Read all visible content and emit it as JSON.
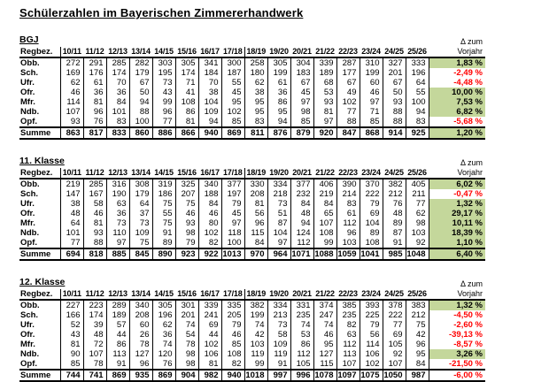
{
  "page_title": "Schülerzahlen im Bayerischen Zimmererhandwerk",
  "label_header": "Regbez.",
  "delta_header": {
    "line1": "Δ zum",
    "line2": "Vorjahr"
  },
  "years": [
    "10/11",
    "11/12",
    "12/13",
    "13/14",
    "14/15",
    "15/16",
    "16/17",
    "17/18",
    "18/19",
    "19/20",
    "20/21",
    "21/22",
    "22/23",
    "23/24",
    "24/25",
    "25/26"
  ],
  "colors": {
    "positive_bg": "#c4d79b",
    "negative_text": "#ff0000",
    "grid": "#000000"
  },
  "tables": [
    {
      "name": "BGJ",
      "rows": [
        {
          "label": "Obb.",
          "values": [
            272,
            291,
            285,
            282,
            303,
            305,
            341,
            300,
            258,
            305,
            304,
            339,
            287,
            310,
            327,
            333
          ],
          "delta": "1,83 %",
          "positive": true
        },
        {
          "label": "Sch.",
          "values": [
            169,
            176,
            174,
            179,
            195,
            174,
            184,
            187,
            180,
            199,
            183,
            189,
            177,
            199,
            201,
            196
          ],
          "delta": "-2,49 %",
          "positive": false
        },
        {
          "label": "Ufr.",
          "values": [
            62,
            61,
            70,
            67,
            73,
            71,
            70,
            55,
            62,
            61,
            67,
            68,
            67,
            60,
            67,
            64
          ],
          "delta": "-4,48 %",
          "positive": false
        },
        {
          "label": "Ofr.",
          "values": [
            46,
            36,
            36,
            50,
            43,
            41,
            38,
            45,
            38,
            36,
            45,
            53,
            49,
            46,
            50,
            55
          ],
          "delta": "10,00 %",
          "positive": true
        },
        {
          "label": "Mfr.",
          "values": [
            114,
            81,
            84,
            94,
            99,
            108,
            104,
            95,
            95,
            86,
            97,
            93,
            102,
            97,
            93,
            100
          ],
          "delta": "7,53 %",
          "positive": true
        },
        {
          "label": "Ndb.",
          "values": [
            107,
            96,
            101,
            88,
            96,
            86,
            109,
            102,
            95,
            95,
            98,
            81,
            77,
            71,
            88,
            94
          ],
          "delta": "6,82 %",
          "positive": true
        },
        {
          "label": "Opf.",
          "values": [
            93,
            76,
            83,
            100,
            77,
            81,
            94,
            85,
            83,
            94,
            85,
            97,
            88,
            85,
            88,
            83
          ],
          "delta": "-5,68 %",
          "positive": false
        }
      ],
      "summe": {
        "label": "Summe",
        "values": [
          863,
          817,
          833,
          860,
          886,
          866,
          940,
          869,
          811,
          876,
          879,
          920,
          847,
          868,
          914,
          925
        ],
        "delta": "1,20 %",
        "positive": true
      }
    },
    {
      "name": "11. Klasse",
      "rows": [
        {
          "label": "Obb.",
          "values": [
            219,
            285,
            316,
            308,
            319,
            325,
            340,
            377,
            330,
            334,
            377,
            406,
            390,
            370,
            382,
            405
          ],
          "delta": "6,02 %",
          "positive": true
        },
        {
          "label": "Sch.",
          "values": [
            147,
            167,
            190,
            179,
            186,
            207,
            188,
            197,
            208,
            218,
            232,
            219,
            214,
            222,
            212,
            211
          ],
          "delta": "-0,47 %",
          "positive": false
        },
        {
          "label": "Ufr.",
          "values": [
            38,
            58,
            63,
            64,
            75,
            75,
            84,
            79,
            81,
            73,
            84,
            84,
            83,
            79,
            76,
            77
          ],
          "delta": "1,32 %",
          "positive": true
        },
        {
          "label": "Ofr.",
          "values": [
            48,
            46,
            36,
            37,
            55,
            46,
            46,
            45,
            56,
            51,
            48,
            65,
            61,
            69,
            48,
            62
          ],
          "delta": "29,17 %",
          "positive": true
        },
        {
          "label": "Mfr.",
          "values": [
            64,
            81,
            73,
            73,
            75,
            93,
            80,
            97,
            96,
            87,
            94,
            107,
            112,
            104,
            89,
            98
          ],
          "delta": "10,11 %",
          "positive": true
        },
        {
          "label": "Ndb.",
          "values": [
            101,
            93,
            110,
            109,
            91,
            98,
            102,
            118,
            115,
            104,
            124,
            108,
            96,
            89,
            87,
            103
          ],
          "delta": "18,39 %",
          "positive": true
        },
        {
          "label": "Opf.",
          "values": [
            77,
            88,
            97,
            75,
            89,
            79,
            82,
            100,
            84,
            97,
            112,
            99,
            103,
            108,
            91,
            92
          ],
          "delta": "1,10 %",
          "positive": true
        }
      ],
      "summe": {
        "label": "Summe",
        "values": [
          694,
          818,
          885,
          845,
          890,
          923,
          922,
          1013,
          970,
          964,
          1071,
          1088,
          1059,
          1041,
          985,
          1048
        ],
        "delta": "6,40 %",
        "positive": true
      }
    },
    {
      "name": "12. Klasse",
      "rows": [
        {
          "label": "Obb.",
          "values": [
            227,
            223,
            289,
            340,
            305,
            301,
            339,
            335,
            382,
            334,
            331,
            374,
            385,
            393,
            378,
            383
          ],
          "delta": "1,32 %",
          "positive": true
        },
        {
          "label": "Sch.",
          "values": [
            166,
            174,
            189,
            208,
            196,
            201,
            241,
            205,
            199,
            213,
            235,
            247,
            235,
            225,
            222,
            212
          ],
          "delta": "-4,50 %",
          "positive": false
        },
        {
          "label": "Ufr.",
          "values": [
            52,
            39,
            57,
            60,
            62,
            74,
            69,
            79,
            74,
            73,
            74,
            74,
            82,
            79,
            77,
            75
          ],
          "delta": "-2,60 %",
          "positive": false
        },
        {
          "label": "Ofr.",
          "values": [
            43,
            48,
            44,
            26,
            36,
            54,
            44,
            46,
            42,
            58,
            53,
            46,
            63,
            56,
            69,
            42
          ],
          "delta": "-39,13 %",
          "positive": false
        },
        {
          "label": "Mfr.",
          "values": [
            81,
            72,
            86,
            78,
            74,
            78,
            102,
            85,
            103,
            109,
            86,
            95,
            112,
            114,
            105,
            96
          ],
          "delta": "-8,57 %",
          "positive": false
        },
        {
          "label": "Ndb.",
          "values": [
            90,
            107,
            113,
            127,
            120,
            98,
            106,
            108,
            119,
            119,
            112,
            127,
            113,
            106,
            92,
            95
          ],
          "delta": "3,26 %",
          "positive": true
        },
        {
          "label": "Opf.",
          "values": [
            85,
            78,
            91,
            96,
            76,
            98,
            81,
            82,
            99,
            91,
            105,
            115,
            107,
            102,
            107,
            84
          ],
          "delta": "-21,50 %",
          "positive": false
        }
      ],
      "summe": {
        "label": "Summe",
        "values": [
          744,
          741,
          869,
          935,
          869,
          904,
          982,
          940,
          1018,
          997,
          996,
          1078,
          1097,
          1075,
          1050,
          987
        ],
        "delta": "-6,00 %",
        "positive": false
      }
    }
  ]
}
